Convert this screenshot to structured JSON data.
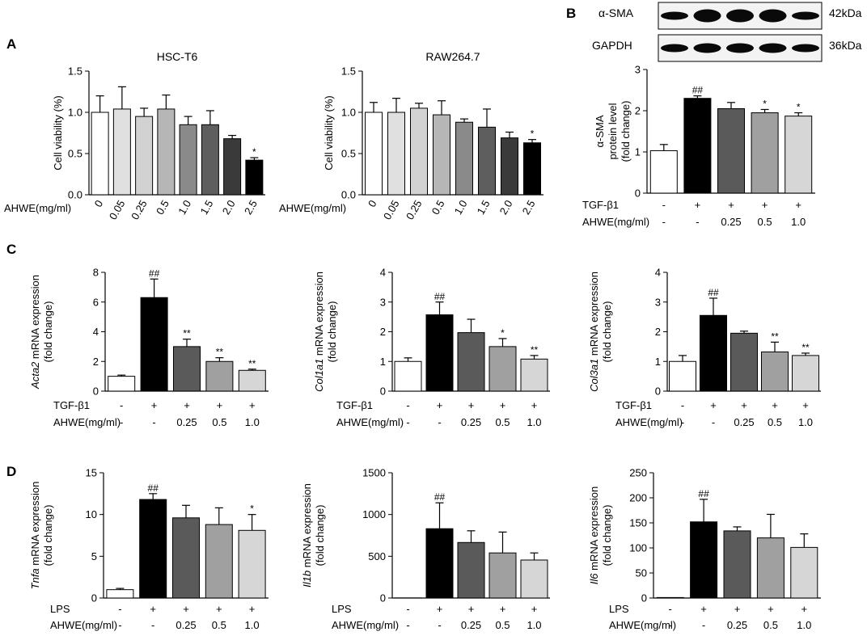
{
  "panel_labels": [
    "A",
    "B",
    "C",
    "D"
  ],
  "western_blot": {
    "rows": [
      {
        "protein": "α-SMA",
        "size": "42kDa"
      },
      {
        "protein": "GAPDH",
        "size": "36kDa"
      }
    ]
  },
  "chart_data": [
    {
      "type": "bar",
      "panel": "A",
      "title": "HSC-T6",
      "ylabel": [
        "Cell viability (%)"
      ],
      "ylim": [
        0,
        1.5
      ],
      "yticks": [
        "0.0",
        "0.5",
        "1.0",
        "1.5"
      ],
      "xlabel": "AHWE(mg/ml)",
      "categories": [
        "0",
        "0.05",
        "0.25",
        "0.5",
        "1.0",
        "1.5",
        "2.0",
        "2.5"
      ],
      "values": [
        1.0,
        1.04,
        0.95,
        1.04,
        0.85,
        0.85,
        0.68,
        0.42
      ],
      "errors": [
        0.2,
        0.27,
        0.1,
        0.17,
        0.1,
        0.17,
        0.04,
        0.03
      ],
      "annotations": [
        "",
        "",
        "",
        "",
        "",
        "",
        "",
        "*"
      ],
      "colors": [
        "#ffffff",
        "#e0e0e0",
        "#d2d2d2",
        "#b6b6b6",
        "#8a8a8a",
        "#5e5e5e",
        "#3a3a3a",
        "#000000"
      ]
    },
    {
      "type": "bar",
      "panel": "A",
      "title": "RAW264.7",
      "ylabel": [
        "Cell viability (%)"
      ],
      "ylim": [
        0,
        1.5
      ],
      "yticks": [
        "0.0",
        "0.5",
        "1.0",
        "1.5"
      ],
      "xlabel": "AHWE(mg/ml)",
      "categories": [
        "0",
        "0.05",
        "0.25",
        "0.5",
        "1.0",
        "1.5",
        "2.0",
        "2.5"
      ],
      "values": [
        1.0,
        1.0,
        1.05,
        0.97,
        0.88,
        0.82,
        0.69,
        0.63
      ],
      "errors": [
        0.12,
        0.17,
        0.06,
        0.17,
        0.04,
        0.22,
        0.07,
        0.04
      ],
      "annotations": [
        "",
        "",
        "",
        "",
        "",
        "",
        "",
        "*"
      ],
      "colors": [
        "#ffffff",
        "#e0e0e0",
        "#d2d2d2",
        "#b6b6b6",
        "#8a8a8a",
        "#5e5e5e",
        "#3a3a3a",
        "#000000"
      ]
    },
    {
      "type": "bar",
      "panel": "B",
      "title": "",
      "ylabel": [
        "α-SMA",
        "protein level",
        "(fold change)"
      ],
      "ylim": [
        0,
        3
      ],
      "yticks": [
        "0",
        "1",
        "2",
        "3"
      ],
      "condition_rows": [
        {
          "label": "TGF-β1",
          "values": [
            "-",
            "+",
            "+",
            "+",
            "+"
          ]
        },
        {
          "label": "AHWE(mg/ml)",
          "values": [
            "-",
            "-",
            "0.25",
            "0.5",
            "1.0"
          ]
        }
      ],
      "values": [
        1.03,
        2.3,
        2.05,
        1.95,
        1.87
      ],
      "errors": [
        0.15,
        0.06,
        0.15,
        0.08,
        0.08
      ],
      "annotations": [
        "",
        "##",
        "",
        "*",
        "*"
      ],
      "colors": [
        "#ffffff",
        "#000000",
        "#5a5a5a",
        "#a0a0a0",
        "#d6d6d6"
      ]
    },
    {
      "type": "bar",
      "panel": "C",
      "title": "",
      "ylabel": [
        "Acta2 mRNA expression",
        "(fold change)"
      ],
      "ylabel_italic_word": "Acta2",
      "ylim": [
        0,
        8
      ],
      "yticks": [
        "0",
        "2",
        "4",
        "6",
        "8"
      ],
      "condition_rows": [
        {
          "label": "TGF-β1",
          "values": [
            "-",
            "+",
            "+",
            "+",
            "+"
          ]
        },
        {
          "label": "AHWE(mg/ml)",
          "values": [
            "-",
            "-",
            "0.25",
            "0.5",
            "1.0"
          ]
        }
      ],
      "values": [
        1.0,
        6.3,
        3.0,
        2.0,
        1.4
      ],
      "errors": [
        0.08,
        1.25,
        0.5,
        0.25,
        0.08
      ],
      "annotations": [
        "",
        "##",
        "**",
        "**",
        "**"
      ],
      "colors": [
        "#ffffff",
        "#000000",
        "#5a5a5a",
        "#a0a0a0",
        "#d6d6d6"
      ]
    },
    {
      "type": "bar",
      "panel": "C",
      "title": "",
      "ylabel": [
        "Col1a1 mRNA expression",
        "(fold change)"
      ],
      "ylabel_italic_word": "Col1a1",
      "ylim": [
        0,
        4
      ],
      "yticks": [
        "0",
        "1",
        "2",
        "3",
        "4"
      ],
      "condition_rows": [
        {
          "label": "TGF-β1",
          "values": [
            "-",
            "+",
            "+",
            "+",
            "+"
          ]
        },
        {
          "label": "AHWE(mg/ml)",
          "values": [
            "-",
            "-",
            "0.25",
            "0.5",
            "1.0"
          ]
        }
      ],
      "values": [
        1.0,
        2.57,
        1.97,
        1.5,
        1.08
      ],
      "errors": [
        0.12,
        0.43,
        0.45,
        0.27,
        0.12
      ],
      "annotations": [
        "",
        "##",
        "",
        "*",
        "**"
      ],
      "colors": [
        "#ffffff",
        "#000000",
        "#5a5a5a",
        "#a0a0a0",
        "#d6d6d6"
      ]
    },
    {
      "type": "bar",
      "panel": "C",
      "title": "",
      "ylabel": [
        "Col3a1 mRNA expression",
        "(fold change)"
      ],
      "ylabel_italic_word": "Col3a1",
      "ylim": [
        0,
        4
      ],
      "yticks": [
        "0",
        "1",
        "2",
        "3",
        "4"
      ],
      "condition_rows": [
        {
          "label": "TGF-β1",
          "values": [
            "-",
            "+",
            "+",
            "+",
            "+"
          ]
        },
        {
          "label": "AHWE(mg/ml)",
          "values": [
            "-",
            "-",
            "0.25",
            "0.5",
            "1.0"
          ]
        }
      ],
      "values": [
        1.0,
        2.55,
        1.95,
        1.32,
        1.2
      ],
      "errors": [
        0.2,
        0.58,
        0.07,
        0.33,
        0.08
      ],
      "annotations": [
        "",
        "##",
        "",
        "**",
        "**"
      ],
      "colors": [
        "#ffffff",
        "#000000",
        "#5a5a5a",
        "#a0a0a0",
        "#d6d6d6"
      ]
    },
    {
      "type": "bar",
      "panel": "D",
      "title": "",
      "ylabel": [
        "Tnfa mRNA expression",
        "(fold change)"
      ],
      "ylabel_italic_word": "Tnfa",
      "ylim": [
        0,
        15
      ],
      "yticks": [
        "0",
        "5",
        "10",
        "15"
      ],
      "condition_rows": [
        {
          "label": "LPS",
          "values": [
            "-",
            "+",
            "+",
            "+",
            "+"
          ]
        },
        {
          "label": "AHWE(mg/ml)",
          "values": [
            "-",
            "-",
            "0.25",
            "0.5",
            "1.0"
          ]
        }
      ],
      "values": [
        1.0,
        11.8,
        9.6,
        8.8,
        8.1
      ],
      "errors": [
        0.15,
        0.7,
        1.5,
        2.0,
        1.9
      ],
      "annotations": [
        "",
        "##",
        "",
        "",
        "*"
      ],
      "colors": [
        "#ffffff",
        "#000000",
        "#5a5a5a",
        "#a0a0a0",
        "#d6d6d6"
      ]
    },
    {
      "type": "bar",
      "panel": "D",
      "title": "",
      "ylabel": [
        "Il1b mRNA expression",
        "(fold change)"
      ],
      "ylabel_italic_word": "Il1b",
      "ylim": [
        0,
        1500
      ],
      "yticks": [
        "0",
        "500",
        "1000",
        "1500"
      ],
      "condition_rows": [
        {
          "label": "LPS",
          "values": [
            "-",
            "+",
            "+",
            "+",
            "+"
          ]
        },
        {
          "label": "AHWE(mg/ml)",
          "values": [
            "-",
            "-",
            "0.25",
            "0.5",
            "1.0"
          ]
        }
      ],
      "values": [
        1,
        830,
        665,
        540,
        455
      ],
      "errors": [
        0,
        310,
        140,
        250,
        85
      ],
      "annotations": [
        "",
        "##",
        "",
        "",
        ""
      ],
      "colors": [
        "#ffffff",
        "#000000",
        "#5a5a5a",
        "#a0a0a0",
        "#d6d6d6"
      ]
    },
    {
      "type": "bar",
      "panel": "D",
      "title": "",
      "ylabel": [
        "Il6 mRNA expression",
        "(fold change)"
      ],
      "ylabel_italic_word": "Il6",
      "ylim": [
        0,
        250
      ],
      "yticks": [
        "0",
        "50",
        "100",
        "150",
        "200",
        "250"
      ],
      "condition_rows": [
        {
          "label": "LPS",
          "values": [
            "-",
            "+",
            "+",
            "+",
            "+"
          ]
        },
        {
          "label": "AHWE(mg/ml)",
          "values": [
            "-",
            "-",
            "0.25",
            "0.5",
            "1.0"
          ]
        }
      ],
      "values": [
        1,
        152,
        134,
        120,
        101
      ],
      "errors": [
        0,
        45,
        8,
        47,
        27
      ],
      "annotations": [
        "",
        "##",
        "",
        "",
        ""
      ],
      "colors": [
        "#ffffff",
        "#000000",
        "#5a5a5a",
        "#a0a0a0",
        "#d6d6d6"
      ]
    }
  ]
}
